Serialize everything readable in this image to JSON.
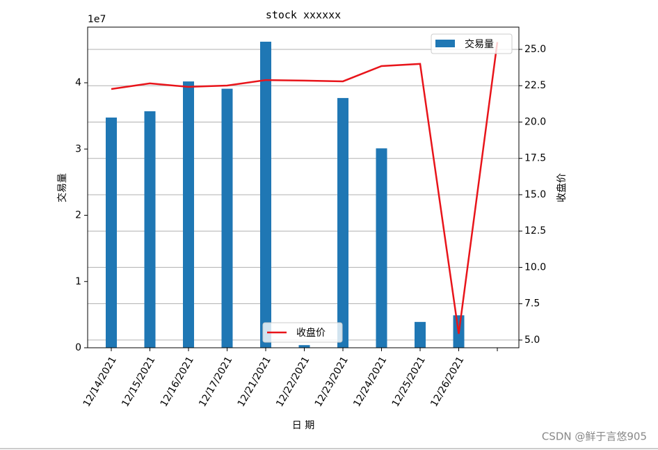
{
  "chart_data": {
    "type": "bar_line",
    "title": "stock xxxxxx",
    "x_label": "日 期",
    "y_label": "交易量",
    "y2_label": "收盘价",
    "y_offset_label": "1e7",
    "categories": [
      "12/14/2021",
      "12/15/2021",
      "12/16/2021",
      "12/17/2021",
      "12/21/2021",
      "12/22/2021",
      "12/23/2021",
      "12/24/2021",
      "12/25/2021",
      "12/26/2021",
      null
    ],
    "series": [
      {
        "name": "交易量",
        "type": "bar",
        "color": "#1f77b4",
        "values": [
          3.475,
          3.57,
          4.02,
          3.91,
          4.62,
          0.04,
          3.77,
          3.01,
          0.39,
          0.49,
          null
        ]
      },
      {
        "name": "收盘价",
        "type": "line",
        "axis": "y2",
        "color": "#e8141a",
        "values": [
          22.27,
          22.66,
          22.42,
          22.51,
          22.89,
          22.85,
          22.8,
          23.85,
          24.0,
          5.43,
          25.5
        ]
      }
    ],
    "ylim": [
      0,
      4.84
    ],
    "yticks": [
      0,
      1,
      2,
      3,
      4
    ],
    "y2lim": [
      4.47,
      26.53
    ],
    "y2ticks": [
      {
        "value": 5,
        "label": "5.0"
      },
      {
        "value": 7.5,
        "label": "7.5"
      },
      {
        "value": 10,
        "label": "10.0"
      },
      {
        "value": 12.5,
        "label": "12.5"
      },
      {
        "value": 15,
        "label": "15.0"
      },
      {
        "value": 17.5,
        "label": "17.5"
      },
      {
        "value": 20,
        "label": "20.0"
      },
      {
        "value": 22.5,
        "label": "22.5"
      },
      {
        "value": 25,
        "label": "25.0"
      }
    ],
    "grid": "y2",
    "watermark": "CSDN @鲜于言悠905"
  }
}
